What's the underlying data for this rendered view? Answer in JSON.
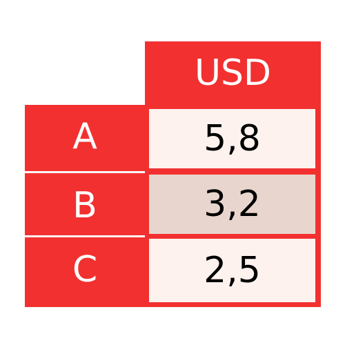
{
  "colors": {
    "header_bg": "#f23030",
    "row_label_bg": "#f23030",
    "value_bg_light": "#fdf2ee",
    "value_bg_highlight": "#e8d6ce",
    "divider": "#ffffff"
  },
  "chart_data": {
    "type": "table",
    "columns": [
      "USD"
    ],
    "rows": [
      {
        "label": "A",
        "value": "5,8",
        "highlight": false
      },
      {
        "label": "B",
        "value": "3,2",
        "highlight": true
      },
      {
        "label": "C",
        "value": "2,5",
        "highlight": false
      }
    ]
  }
}
